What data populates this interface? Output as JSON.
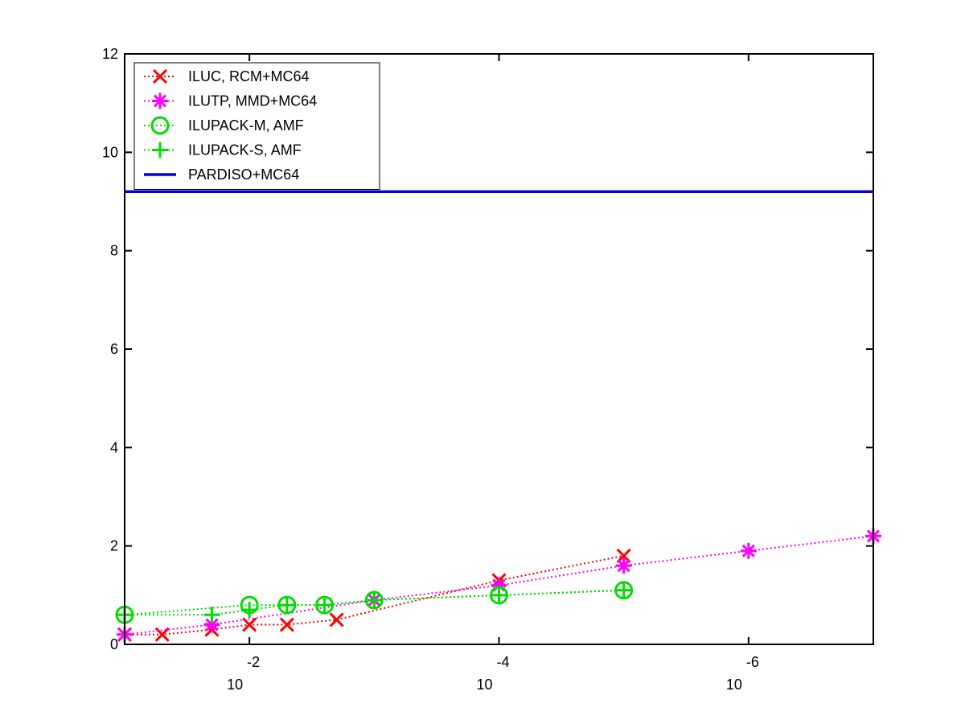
{
  "chart_data": {
    "type": "line",
    "title": "",
    "xlabel": "",
    "ylabel": "",
    "x_scale": "log",
    "x_reversed": true,
    "xlim": [
      0.1,
      1e-07
    ],
    "ylim": [
      0,
      12
    ],
    "x_ticks": [
      {
        "value": 0.01,
        "base": "10",
        "exp": "-2"
      },
      {
        "value": 0.0001,
        "base": "10",
        "exp": "-4"
      },
      {
        "value": 1e-06,
        "base": "10",
        "exp": "-6"
      }
    ],
    "y_ticks": [
      "0",
      "2",
      "4",
      "6",
      "8",
      "10",
      "12"
    ],
    "grid": false,
    "legend_position": "top-left",
    "series": [
      {
        "name": "ILUC, RCM+MC64",
        "color": "#ff0000",
        "marker": "x",
        "line": "dotted",
        "x": [
          0.1,
          0.05,
          0.02,
          0.01,
          0.005,
          0.002,
          0.0001,
          1e-05
        ],
        "y": [
          0.2,
          0.2,
          0.3,
          0.4,
          0.4,
          0.5,
          1.3,
          1.8
        ]
      },
      {
        "name": "ILUTP, MMD+MC64",
        "color": "#ff00ff",
        "marker": "star",
        "line": "dotted",
        "x": [
          0.1,
          0.02,
          0.001,
          0.0001,
          1e-05,
          1e-06,
          1e-07
        ],
        "y": [
          0.2,
          0.4,
          0.9,
          1.2,
          1.6,
          1.9,
          2.2
        ]
      },
      {
        "name": "ILUPACK-M, AMF",
        "color": "#00dd00",
        "marker": "circle",
        "line": "dotted",
        "x": [
          0.1,
          0.01,
          0.005,
          0.0025,
          0.001,
          0.0001,
          1e-05
        ],
        "y": [
          0.6,
          0.8,
          0.8,
          0.8,
          0.9,
          1.0,
          1.1
        ]
      },
      {
        "name": "ILUPACK-S, AMF",
        "color": "#00dd00",
        "marker": "plus",
        "line": "dotted",
        "x": [
          0.1,
          0.02,
          0.01,
          0.005,
          0.0025,
          0.001,
          0.0001,
          1e-05
        ],
        "y": [
          0.6,
          0.6,
          0.7,
          0.8,
          0.8,
          0.9,
          1.0,
          1.1
        ]
      },
      {
        "name": "PARDISO+MC64",
        "color": "#0000dd",
        "marker": "none",
        "line": "solid",
        "x": [
          0.1,
          1e-07
        ],
        "y": [
          9.2,
          9.2
        ]
      }
    ]
  }
}
